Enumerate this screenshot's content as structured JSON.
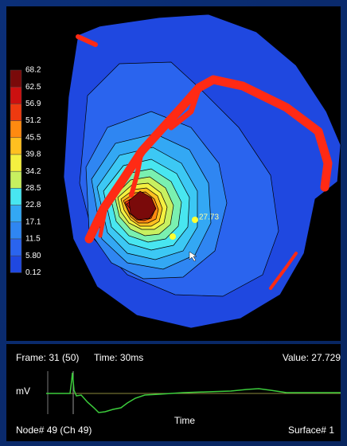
{
  "colorbar": {
    "labels": [
      "68.2",
      "62.5",
      "56.9",
      "51.2",
      "45.5",
      "39.8",
      "34.2",
      "28.5",
      "22.8",
      "17.1",
      "11.5",
      "5.80",
      "0.12"
    ]
  },
  "view": {
    "marker_label": "27.73"
  },
  "status": {
    "frame": "Frame: 31 (50)",
    "time": "Time: 30ms",
    "value": "Value: 27.729"
  },
  "trace": {
    "y_label": "mV",
    "x_label": "Time"
  },
  "footer": {
    "node": "Node# 49 (Ch 49)",
    "surface": "Surface# 1"
  }
}
